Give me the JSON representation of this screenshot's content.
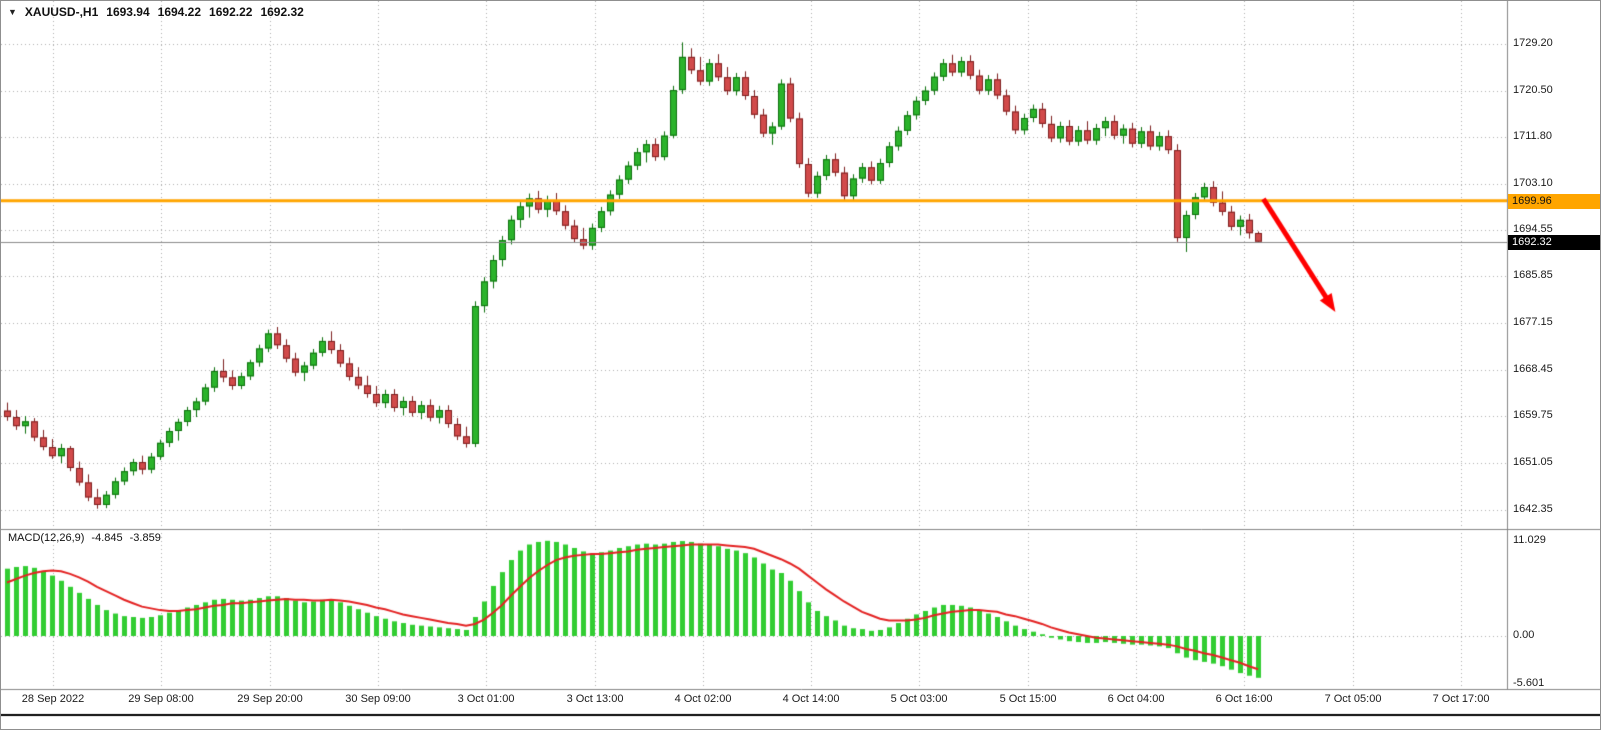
{
  "header": {
    "dropdown_icon": "▼",
    "symbol_timeframe": "XAUUSD-,H1",
    "open": "1693.94",
    "high": "1694.22",
    "low": "1692.22",
    "close": "1692.32"
  },
  "price_axis": {
    "labels": [
      "1729.20",
      "1720.50",
      "1711.80",
      "1703.10",
      "1694.55",
      "1685.85",
      "1677.15",
      "1668.45",
      "1659.75",
      "1651.05",
      "1642.35"
    ]
  },
  "time_axis": {
    "labels": [
      "28 Sep 2022",
      "29 Sep 08:00",
      "29 Sep 20:00",
      "30 Sep 09:00",
      "3 Oct 01:00",
      "3 Oct 13:00",
      "4 Oct 02:00",
      "4 Oct 14:00",
      "5 Oct 03:00",
      "5 Oct 15:00",
      "6 Oct 04:00",
      "6 Oct 16:00",
      "7 Oct 05:00",
      "7 Oct 17:00"
    ]
  },
  "levels": {
    "horizontal_line": {
      "price": 1699.96,
      "label": "1699.96",
      "color": "#FFA500"
    },
    "bid_line": {
      "price": 1692.32,
      "label": "1692.32",
      "color": "#8a8a8a"
    }
  },
  "macd": {
    "label": "MACD(12,26,9)",
    "value": "-4.845",
    "signal_value": "-3.859",
    "axis_labels": [
      "11.029",
      "0.00",
      "-5.601"
    ]
  },
  "annotation_arrow": {
    "color": "#FF0000",
    "direction": "down-right",
    "from": {
      "index": 139.6,
      "price": 1700.3
    },
    "to": {
      "index": 147.6,
      "price": 1679.2
    }
  },
  "colors": {
    "up": "#2BB32B",
    "up_edge": "#0C700C",
    "down": "#D14A4A",
    "down_edge": "#7D1F1F",
    "grid": "#ABABAB",
    "separator": "#848484",
    "macd_hist": "#32CD32",
    "macd_signal": "#E32222"
  },
  "chart_data": [
    {
      "type": "candlestick",
      "title": "XAUUSD-,H1",
      "y_tick_labels": [
        "1729.20",
        "1720.50",
        "1711.80",
        "1703.10",
        "1694.55",
        "1685.85",
        "1677.15",
        "1668.45",
        "1659.75",
        "1651.05",
        "1642.35"
      ],
      "x_tick_labels": [
        "28 Sep 2022",
        "29 Sep 08:00",
        "29 Sep 20:00",
        "30 Sep 09:00",
        "3 Oct 01:00",
        "3 Oct 13:00",
        "4 Oct 02:00",
        "4 Oct 14:00",
        "5 Oct 03:00",
        "5 Oct 15:00",
        "6 Oct 04:00",
        "6 Oct 16:00",
        "7 Oct 05:00",
        "7 Oct 17:00"
      ],
      "y_range": [
        1640.0,
        1734.0
      ],
      "hline_price": 1699.96,
      "last_price": 1692.32,
      "candles": [
        [
          1660.8,
          1662.3,
          1658.9,
          1659.6
        ],
        [
          1659.6,
          1660.9,
          1657.2,
          1657.9
        ],
        [
          1657.9,
          1659.8,
          1656.5,
          1658.8
        ],
        [
          1658.8,
          1659.4,
          1655.1,
          1655.8
        ],
        [
          1655.8,
          1657.2,
          1653.4,
          1654.0
        ],
        [
          1654.0,
          1655.5,
          1651.8,
          1652.3
        ],
        [
          1652.3,
          1654.6,
          1651.0,
          1653.8
        ],
        [
          1653.8,
          1654.2,
          1649.5,
          1650.1
        ],
        [
          1650.1,
          1651.3,
          1646.8,
          1647.4
        ],
        [
          1647.4,
          1648.9,
          1643.9,
          1644.6
        ],
        [
          1644.6,
          1646.2,
          1642.5,
          1643.2
        ],
        [
          1643.2,
          1645.8,
          1642.6,
          1645.1
        ],
        [
          1645.1,
          1648.3,
          1644.4,
          1647.6
        ],
        [
          1647.6,
          1650.2,
          1646.9,
          1649.5
        ],
        [
          1649.5,
          1651.8,
          1648.7,
          1651.2
        ],
        [
          1651.2,
          1652.4,
          1648.9,
          1649.8
        ],
        [
          1649.8,
          1652.9,
          1649.1,
          1652.2
        ],
        [
          1652.2,
          1655.4,
          1651.6,
          1654.8
        ],
        [
          1654.8,
          1657.6,
          1654.0,
          1657.0
        ],
        [
          1657.0,
          1659.3,
          1655.2,
          1658.7
        ],
        [
          1658.7,
          1661.5,
          1657.9,
          1660.9
        ],
        [
          1660.9,
          1663.2,
          1659.6,
          1662.5
        ],
        [
          1662.5,
          1665.8,
          1661.8,
          1665.1
        ],
        [
          1665.1,
          1668.9,
          1664.3,
          1668.2
        ],
        [
          1668.2,
          1670.4,
          1666.1,
          1667.0
        ],
        [
          1667.0,
          1668.3,
          1664.7,
          1665.4
        ],
        [
          1665.4,
          1667.9,
          1664.8,
          1667.2
        ],
        [
          1667.2,
          1670.3,
          1666.5,
          1669.8
        ],
        [
          1669.8,
          1673.1,
          1669.0,
          1672.4
        ],
        [
          1672.4,
          1675.9,
          1671.7,
          1675.2
        ],
        [
          1675.2,
          1676.4,
          1672.3,
          1673.0
        ],
        [
          1673.0,
          1674.1,
          1669.8,
          1670.5
        ],
        [
          1670.5,
          1671.6,
          1667.2,
          1667.9
        ],
        [
          1667.9,
          1669.9,
          1666.3,
          1669.2
        ],
        [
          1669.2,
          1672.3,
          1668.5,
          1671.6
        ],
        [
          1671.6,
          1674.5,
          1670.9,
          1673.8
        ],
        [
          1673.8,
          1675.6,
          1671.4,
          1672.1
        ],
        [
          1672.1,
          1673.2,
          1668.9,
          1669.6
        ],
        [
          1669.6,
          1670.7,
          1666.4,
          1667.1
        ],
        [
          1667.1,
          1668.9,
          1664.8,
          1665.5
        ],
        [
          1665.5,
          1667.3,
          1663.2,
          1663.9
        ],
        [
          1663.9,
          1665.4,
          1661.5,
          1662.2
        ],
        [
          1662.2,
          1664.7,
          1661.3,
          1663.9
        ],
        [
          1663.9,
          1664.8,
          1660.6,
          1661.3
        ],
        [
          1661.3,
          1663.4,
          1659.9,
          1662.6
        ],
        [
          1662.6,
          1663.5,
          1659.7,
          1660.4
        ],
        [
          1660.4,
          1662.6,
          1659.2,
          1661.8
        ],
        [
          1661.8,
          1662.9,
          1658.8,
          1659.5
        ],
        [
          1659.5,
          1661.7,
          1658.4,
          1660.9
        ],
        [
          1660.9,
          1661.8,
          1657.6,
          1658.3
        ],
        [
          1658.3,
          1659.4,
          1655.3,
          1656.0
        ],
        [
          1656.0,
          1657.8,
          1653.9,
          1654.6
        ],
        [
          1654.6,
          1681.2,
          1654.0,
          1680.3
        ],
        [
          1680.3,
          1685.7,
          1679.1,
          1684.9
        ],
        [
          1684.9,
          1689.8,
          1683.6,
          1688.9
        ],
        [
          1688.9,
          1693.4,
          1687.7,
          1692.6
        ],
        [
          1692.6,
          1697.2,
          1691.8,
          1696.4
        ],
        [
          1696.4,
          1699.8,
          1694.9,
          1698.9
        ],
        [
          1698.9,
          1701.3,
          1696.8,
          1700.4
        ],
        [
          1700.4,
          1701.8,
          1697.6,
          1698.3
        ],
        [
          1698.3,
          1700.9,
          1696.9,
          1700.1
        ],
        [
          1700.1,
          1701.4,
          1697.3,
          1698.0
        ],
        [
          1698.0,
          1699.1,
          1694.6,
          1695.3
        ],
        [
          1695.3,
          1696.4,
          1692.1,
          1692.8
        ],
        [
          1692.8,
          1694.9,
          1690.9,
          1691.6
        ],
        [
          1691.6,
          1695.7,
          1690.8,
          1694.9
        ],
        [
          1694.9,
          1698.8,
          1694.1,
          1698.0
        ],
        [
          1698.0,
          1701.9,
          1697.2,
          1701.1
        ],
        [
          1701.1,
          1704.7,
          1700.3,
          1703.9
        ],
        [
          1703.9,
          1707.3,
          1703.1,
          1706.5
        ],
        [
          1706.5,
          1709.8,
          1705.7,
          1709.0
        ],
        [
          1709.0,
          1711.3,
          1707.1,
          1710.5
        ],
        [
          1710.5,
          1711.6,
          1707.4,
          1708.1
        ],
        [
          1708.1,
          1712.9,
          1707.5,
          1712.1
        ],
        [
          1712.1,
          1721.4,
          1711.6,
          1720.6
        ],
        [
          1720.6,
          1729.5,
          1719.9,
          1726.8
        ],
        [
          1726.8,
          1728.4,
          1723.6,
          1724.3
        ],
        [
          1724.3,
          1726.8,
          1721.5,
          1722.2
        ],
        [
          1722.2,
          1726.4,
          1721.4,
          1725.6
        ],
        [
          1725.6,
          1727.3,
          1722.3,
          1723.0
        ],
        [
          1723.0,
          1724.9,
          1719.7,
          1720.4
        ],
        [
          1720.4,
          1723.8,
          1719.6,
          1723.0
        ],
        [
          1723.0,
          1724.1,
          1718.8,
          1719.5
        ],
        [
          1719.5,
          1720.6,
          1715.3,
          1716.0
        ],
        [
          1716.0,
          1717.1,
          1711.8,
          1712.5
        ],
        [
          1712.5,
          1714.6,
          1710.4,
          1713.8
        ],
        [
          1713.8,
          1722.6,
          1713.2,
          1721.8
        ],
        [
          1721.8,
          1722.9,
          1714.6,
          1715.3
        ],
        [
          1715.3,
          1716.4,
          1706.1,
          1706.8
        ],
        [
          1706.8,
          1707.9,
          1700.6,
          1701.3
        ],
        [
          1701.3,
          1705.4,
          1700.5,
          1704.6
        ],
        [
          1704.6,
          1708.5,
          1703.8,
          1707.7
        ],
        [
          1707.7,
          1708.8,
          1704.5,
          1705.2
        ],
        [
          1705.2,
          1706.3,
          1699.9,
          1700.8
        ],
        [
          1700.8,
          1704.9,
          1700.1,
          1704.1
        ],
        [
          1704.1,
          1707.0,
          1703.3,
          1706.2
        ],
        [
          1706.2,
          1707.3,
          1703.0,
          1703.7
        ],
        [
          1703.7,
          1707.8,
          1703.1,
          1707.0
        ],
        [
          1707.0,
          1710.9,
          1706.2,
          1710.1
        ],
        [
          1710.1,
          1713.8,
          1709.3,
          1713.0
        ],
        [
          1713.0,
          1716.7,
          1712.2,
          1715.9
        ],
        [
          1715.9,
          1719.4,
          1715.1,
          1718.6
        ],
        [
          1718.6,
          1721.3,
          1717.8,
          1720.5
        ],
        [
          1720.5,
          1723.9,
          1719.7,
          1723.1
        ],
        [
          1723.1,
          1726.4,
          1722.3,
          1725.6
        ],
        [
          1725.6,
          1727.2,
          1723.2,
          1723.9
        ],
        [
          1723.9,
          1726.8,
          1723.1,
          1726.0
        ],
        [
          1726.0,
          1727.1,
          1722.6,
          1723.3
        ],
        [
          1723.3,
          1724.4,
          1719.8,
          1720.5
        ],
        [
          1720.5,
          1723.4,
          1719.7,
          1722.6
        ],
        [
          1722.6,
          1723.7,
          1718.9,
          1719.6
        ],
        [
          1719.6,
          1720.7,
          1715.9,
          1716.6
        ],
        [
          1716.6,
          1717.7,
          1712.4,
          1713.1
        ],
        [
          1713.1,
          1716.2,
          1712.3,
          1715.4
        ],
        [
          1715.4,
          1717.9,
          1714.6,
          1717.1
        ],
        [
          1717.1,
          1718.2,
          1713.6,
          1714.3
        ],
        [
          1714.3,
          1715.8,
          1710.9,
          1711.6
        ],
        [
          1711.6,
          1714.7,
          1710.8,
          1713.9
        ],
        [
          1713.9,
          1715.0,
          1710.3,
          1711.0
        ],
        [
          1711.0,
          1713.9,
          1710.2,
          1713.1
        ],
        [
          1713.1,
          1714.8,
          1710.5,
          1711.2
        ],
        [
          1711.2,
          1714.3,
          1710.4,
          1713.5
        ],
        [
          1713.5,
          1715.6,
          1712.0,
          1714.8
        ],
        [
          1714.8,
          1715.9,
          1711.4,
          1712.1
        ],
        [
          1712.1,
          1714.2,
          1710.6,
          1713.4
        ],
        [
          1713.4,
          1714.5,
          1709.9,
          1710.6
        ],
        [
          1710.6,
          1713.7,
          1709.8,
          1712.9
        ],
        [
          1712.9,
          1714.0,
          1709.4,
          1710.1
        ],
        [
          1710.1,
          1712.8,
          1709.3,
          1712.0
        ],
        [
          1712.0,
          1713.1,
          1708.7,
          1709.4
        ],
        [
          1709.4,
          1710.5,
          1692.3,
          1693.0
        ],
        [
          1693.0,
          1698.1,
          1690.4,
          1697.3
        ],
        [
          1697.3,
          1701.4,
          1696.5,
          1700.6
        ],
        [
          1700.6,
          1703.3,
          1699.8,
          1702.5
        ],
        [
          1702.5,
          1703.6,
          1698.9,
          1699.6
        ],
        [
          1699.6,
          1701.7,
          1697.2,
          1697.9
        ],
        [
          1697.9,
          1699.0,
          1694.4,
          1695.1
        ],
        [
          1695.1,
          1697.2,
          1693.5,
          1696.4
        ],
        [
          1696.4,
          1697.5,
          1692.9,
          1693.9
        ],
        [
          1693.94,
          1694.22,
          1692.22,
          1692.32
        ]
      ]
    },
    {
      "type": "bar+line",
      "title": "MACD(12,26,9)",
      "y_tick_labels": [
        "11.029",
        "0.00",
        "-5.601"
      ],
      "y_range": [
        -5.601,
        11.029
      ],
      "histogram": [
        7.8,
        8.0,
        8.1,
        7.9,
        7.5,
        7.0,
        6.4,
        5.7,
        5.0,
        4.3,
        3.6,
        3.0,
        2.6,
        2.3,
        2.2,
        2.1,
        2.2,
        2.4,
        2.7,
        3.0,
        3.3,
        3.6,
        3.9,
        4.2,
        4.3,
        4.2,
        4.1,
        4.2,
        4.4,
        4.6,
        4.6,
        4.4,
        4.1,
        3.9,
        4.0,
        4.2,
        4.2,
        3.9,
        3.5,
        3.1,
        2.7,
        2.3,
        2.0,
        1.7,
        1.5,
        1.3,
        1.2,
        1.1,
        1.0,
        0.9,
        0.8,
        0.7,
        2.2,
        4.0,
        5.8,
        7.4,
        8.8,
        9.9,
        10.6,
        10.9,
        11.03,
        10.9,
        10.6,
        10.2,
        9.8,
        9.6,
        9.7,
        9.9,
        10.2,
        10.4,
        10.6,
        10.7,
        10.6,
        10.7,
        10.9,
        11.0,
        10.9,
        10.7,
        10.6,
        10.4,
        10.1,
        9.9,
        9.6,
        9.1,
        8.4,
        7.7,
        7.3,
        6.4,
        5.2,
        3.9,
        2.9,
        2.3,
        1.8,
        1.2,
        0.9,
        0.8,
        0.6,
        0.7,
        1.0,
        1.5,
        2.0,
        2.5,
        2.9,
        3.3,
        3.6,
        3.6,
        3.5,
        3.3,
        2.9,
        2.6,
        2.2,
        1.7,
        1.2,
        0.8,
        0.5,
        0.2,
        -0.2,
        -0.4,
        -0.6,
        -0.7,
        -0.8,
        -0.8,
        -0.7,
        -0.8,
        -0.9,
        -1.0,
        -1.0,
        -1.1,
        -1.2,
        -1.4,
        -2.0,
        -2.5,
        -2.8,
        -3.0,
        -3.2,
        -3.5,
        -3.9,
        -4.3,
        -4.6,
        -4.845
      ],
      "signal": [
        6.2,
        6.6,
        7.0,
        7.3,
        7.5,
        7.6,
        7.5,
        7.2,
        6.8,
        6.3,
        5.7,
        5.2,
        4.7,
        4.2,
        3.8,
        3.4,
        3.2,
        3.0,
        2.9,
        2.9,
        3.0,
        3.1,
        3.3,
        3.5,
        3.6,
        3.8,
        3.8,
        3.9,
        4.0,
        4.1,
        4.2,
        4.3,
        4.2,
        4.2,
        4.1,
        4.1,
        4.2,
        4.1,
        4.0,
        3.8,
        3.6,
        3.3,
        3.1,
        2.8,
        2.5,
        2.3,
        2.1,
        1.9,
        1.7,
        1.5,
        1.4,
        1.2,
        1.4,
        1.9,
        2.7,
        3.6,
        4.7,
        5.7,
        6.7,
        7.5,
        8.2,
        8.8,
        9.1,
        9.3,
        9.4,
        9.5,
        9.5,
        9.6,
        9.7,
        9.8,
        10.0,
        10.1,
        10.2,
        10.3,
        10.4,
        10.5,
        10.6,
        10.6,
        10.6,
        10.6,
        10.5,
        10.4,
        10.3,
        10.1,
        9.7,
        9.3,
        8.9,
        8.4,
        7.8,
        7.0,
        6.2,
        5.4,
        4.7,
        4.0,
        3.4,
        2.8,
        2.4,
        2.0,
        1.8,
        1.8,
        1.8,
        1.9,
        2.1,
        2.4,
        2.6,
        2.8,
        2.9,
        3.0,
        3.0,
        2.9,
        2.8,
        2.5,
        2.3,
        2.0,
        1.7,
        1.4,
        1.0,
        0.7,
        0.4,
        0.2,
        0.0,
        -0.2,
        -0.3,
        -0.4,
        -0.5,
        -0.6,
        -0.7,
        -0.8,
        -0.9,
        -1.0,
        -1.2,
        -1.5,
        -1.7,
        -2.0,
        -2.2,
        -2.5,
        -2.8,
        -3.1,
        -3.5,
        -3.859
      ]
    }
  ]
}
